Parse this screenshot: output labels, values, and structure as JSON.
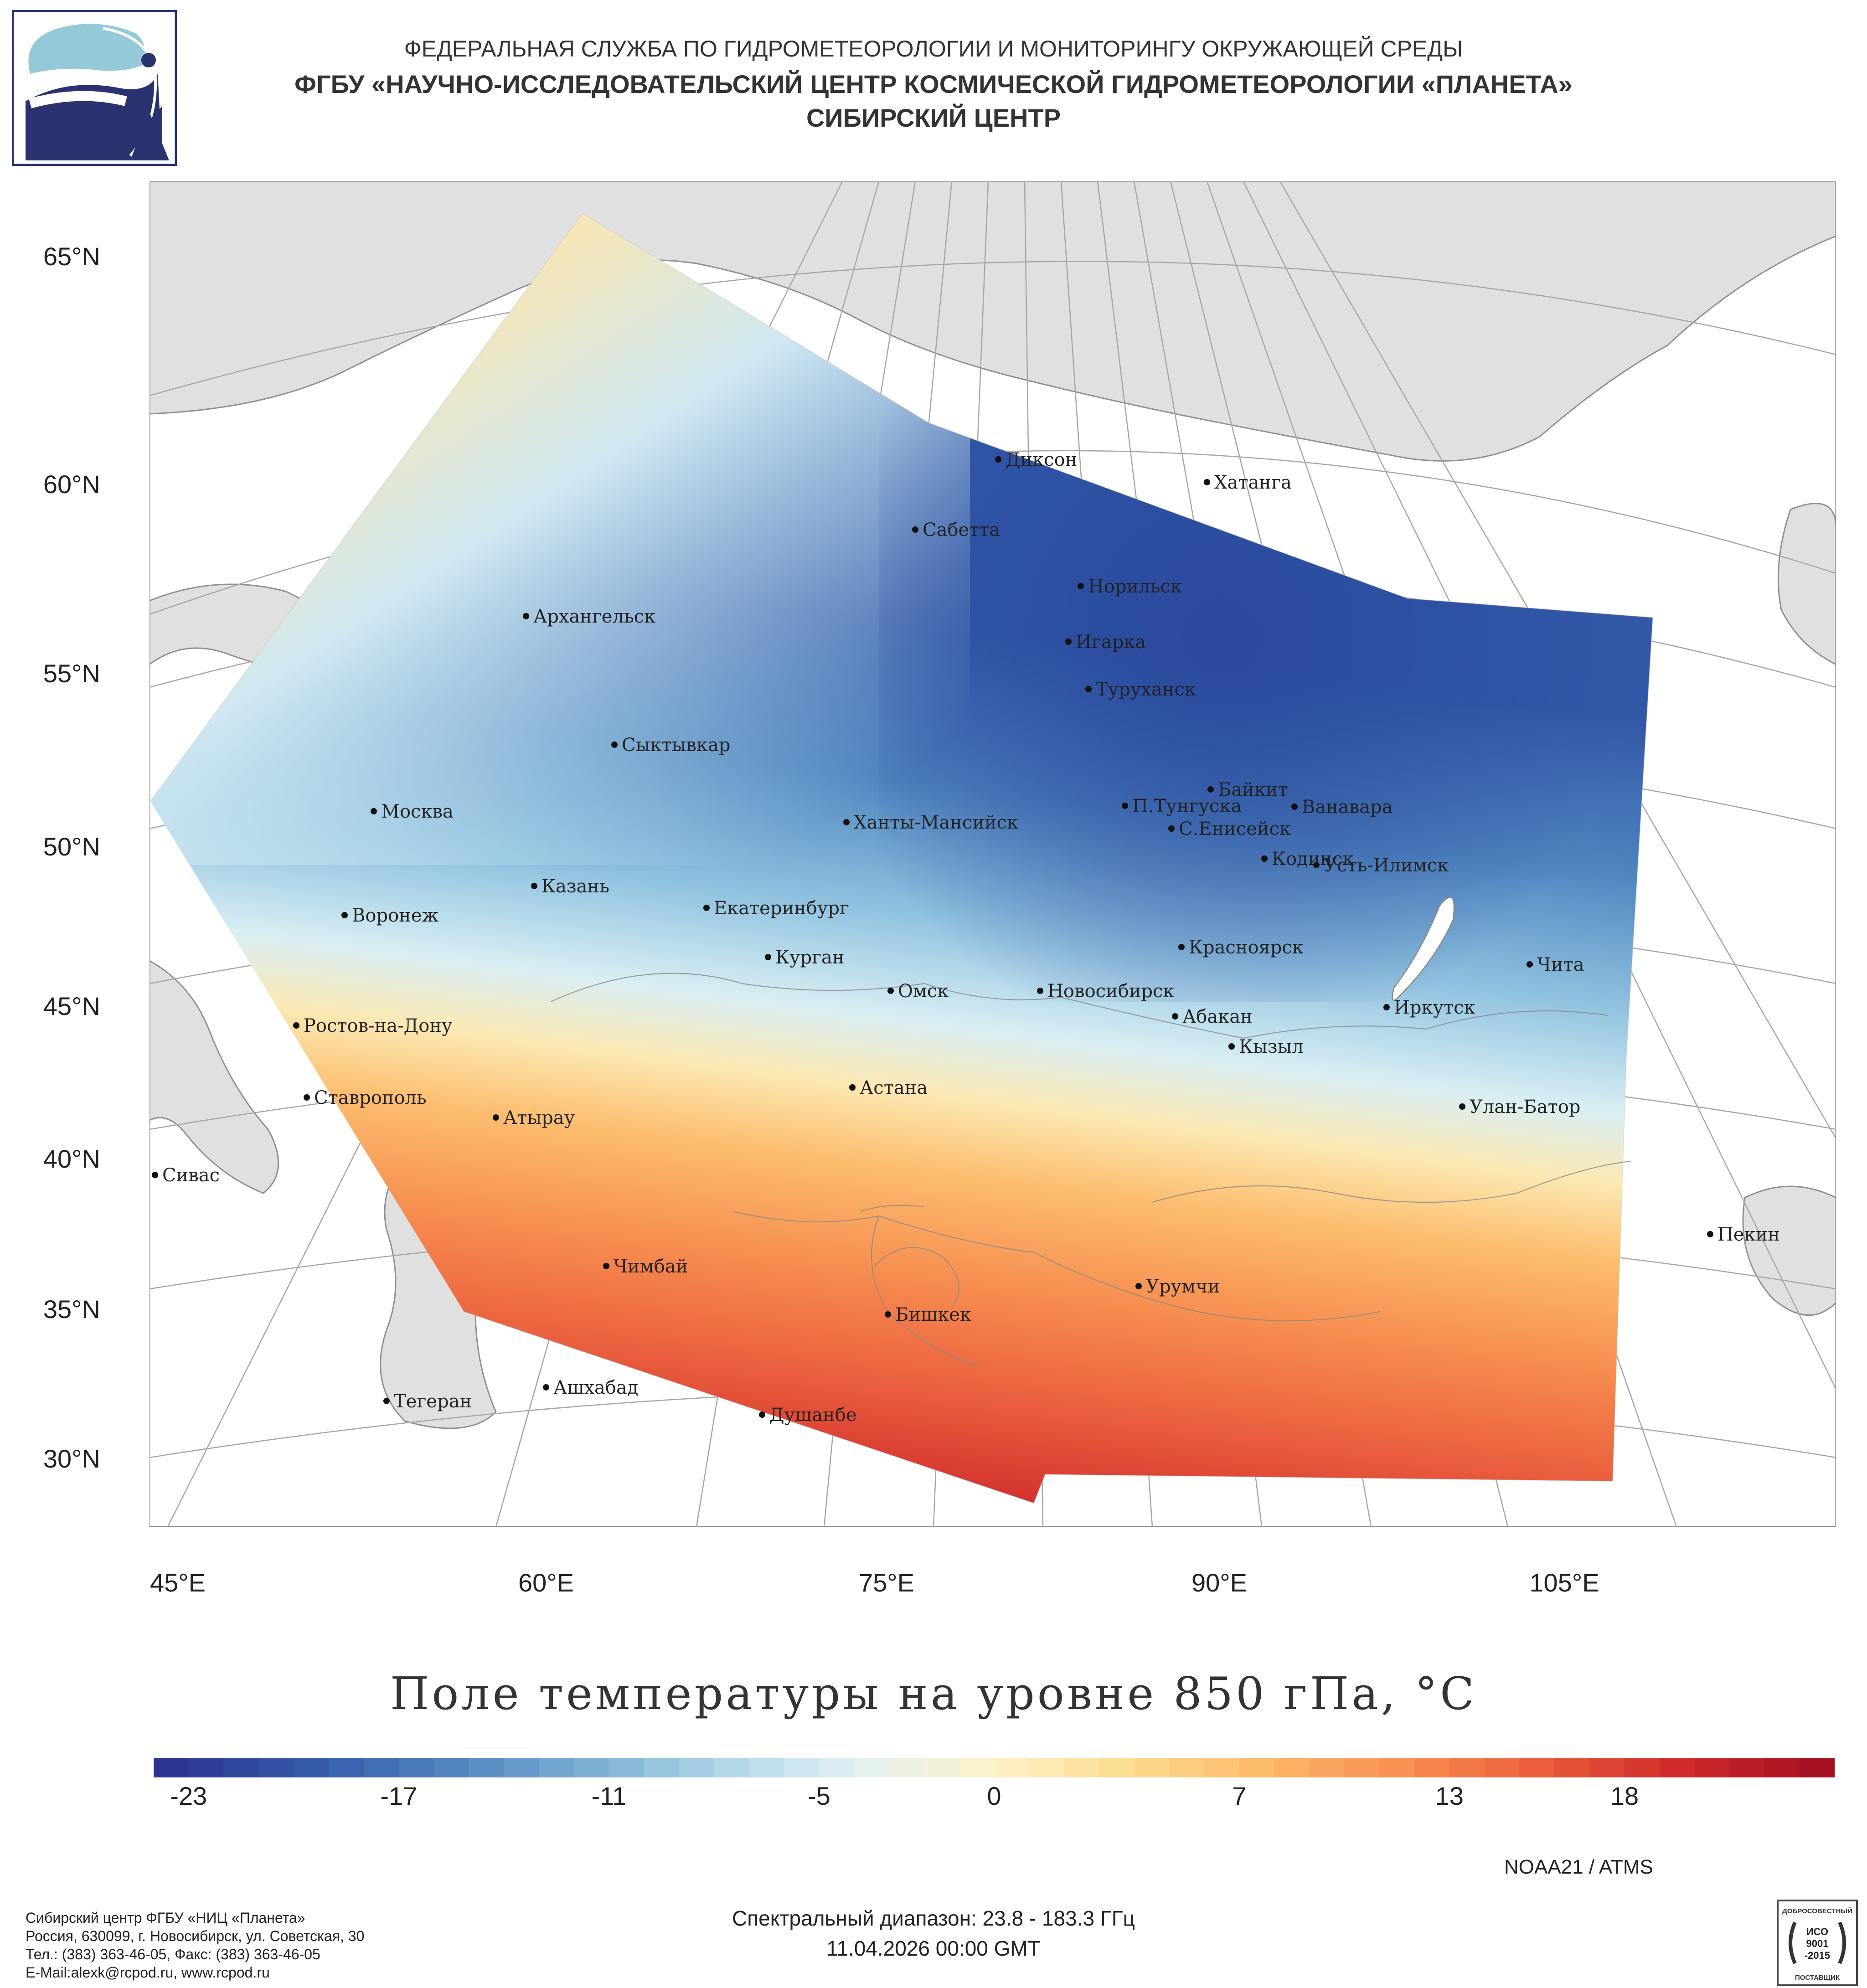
{
  "header": {
    "line1": "ФЕДЕРАЛЬНАЯ СЛУЖБА ПО ГИДРОМЕТЕОРОЛОГИИ И МОНИТОРИНГУ ОКРУЖАЮЩЕЙ СРЕДЫ",
    "line2": "ФГБУ «НАУЧНО-ИССЛЕДОВАТЕЛЬСКИЙ ЦЕНТР КОСМИЧЕСКОЙ ГИДРОМЕТЕОРОЛОГИИ «ПЛАНЕТА»",
    "line3": "СИБИРСКИЙ ЦЕНТР"
  },
  "map": {
    "lat_labels": [
      "65°N",
      "60°N",
      "55°N",
      "50°N",
      "45°N",
      "40°N",
      "35°N",
      "30°N"
    ],
    "lon_labels": [
      "45°E",
      "60°E",
      "75°E",
      "90°E",
      "105°E"
    ],
    "cities": [
      "Диксон",
      "Хатанга",
      "Сабетта",
      "Норильск",
      "Архангельск",
      "Игарка",
      "Туруханск",
      "Сыктывкар",
      "Байкит",
      "П.Тунгуска",
      "Ванавара",
      "Москва",
      "Ханты-Мансийск",
      "С.Енисейск",
      "Кодинск",
      "Усть-Илимск",
      "Казань",
      "Екатеринбург",
      "Воронеж",
      "Красноярск",
      "Курган",
      "Чита",
      "Омск",
      "Новосибирск",
      "Иркутск",
      "Абакан",
      "Ростов-на-Дону",
      "Кызыл",
      "Астана",
      "Ставрополь",
      "Улан-Батор",
      "Атырау",
      "Сивас",
      "Пекин",
      "Чимбай",
      "Урумчи",
      "Бишкек",
      "Ашхабад",
      "Тегеран",
      "Душанбе"
    ]
  },
  "title": "Поле температуры на уровне 850 гПа, °C",
  "colorbar": {
    "ticks": [
      "-23",
      "-17",
      "-11",
      "-5",
      "0",
      "7",
      "13",
      "18"
    ],
    "min": -24,
    "max": 24,
    "colors": [
      "#2c3592",
      "#3459aa",
      "#4d82bd",
      "#79aed4",
      "#aed5e8",
      "#e2f1f4",
      "#fdf2c8",
      "#fcdb8e",
      "#fdb869",
      "#f98e4f",
      "#ea5b3b",
      "#cf2a2a",
      "#a50f22"
    ]
  },
  "satellite": "NOAA21 / ATMS",
  "spectral_range": "Спектральный диапазон: 23.8 - 183.3 ГГц",
  "datetime": "11.04.2026 00:00 GMT",
  "footer": {
    "line1": "Сибирский центр ФГБУ «НИЦ «Планета»",
    "line2": "Россия, 630099, г. Новосибирск, ул. Советская, 30",
    "line3": "Тел.: (383) 363-46-05, Факс: (383) 363-46-05",
    "line4": "E-Mail:alexk@rcpod.ru, www.rcpod.ru"
  },
  "iso_badge": {
    "arc_text": "ДОБРОСОВЕСТНЫЙ",
    "line1": "ИСО",
    "line2": "9001",
    "line3": "-2015",
    "bottom_text": "ПОСТАВЩИК"
  }
}
